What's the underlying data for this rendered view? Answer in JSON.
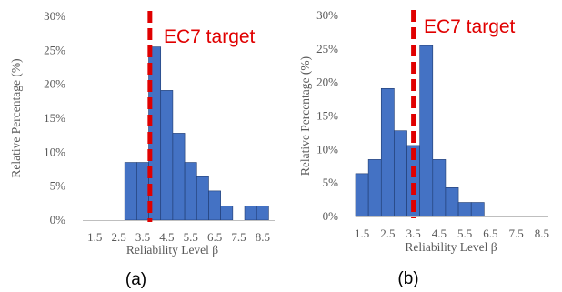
{
  "chart_data": [
    {
      "type": "bar",
      "panel_label": "(a)",
      "xlabel": "Reliability Level β",
      "ylabel": "Relative Percentage (%)",
      "y_ticks": [
        "0%",
        "5%",
        "10%",
        "15%",
        "20%",
        "25%",
        "30%"
      ],
      "ylim": [
        0,
        30
      ],
      "x_ticks": [
        "1.5",
        "2.5",
        "3.5",
        "4.5",
        "5.5",
        "6.5",
        "7.5",
        "8.5"
      ],
      "xlim": [
        1.0,
        9.0
      ],
      "bin_width": 0.5,
      "bins": [
        {
          "x": 3.0,
          "value": 8.5
        },
        {
          "x": 3.5,
          "value": 8.5
        },
        {
          "x": 4.0,
          "value": 25.5
        },
        {
          "x": 4.5,
          "value": 19.1
        },
        {
          "x": 5.0,
          "value": 12.8
        },
        {
          "x": 5.5,
          "value": 8.5
        },
        {
          "x": 6.0,
          "value": 6.4
        },
        {
          "x": 6.5,
          "value": 4.3
        },
        {
          "x": 7.0,
          "value": 2.1
        },
        {
          "x": 8.0,
          "value": 2.1
        },
        {
          "x": 8.5,
          "value": 2.1
        }
      ],
      "target": {
        "label": "EC7 target",
        "x": 3.8
      },
      "bar_color": "#4472c4",
      "bar_edge_color": "#1f3a6e",
      "target_color": "#e00000"
    },
    {
      "type": "bar",
      "panel_label": "(b)",
      "xlabel": "Reliability Level β",
      "ylabel": "Relative Percentage (%)",
      "y_ticks": [
        "0%",
        "5%",
        "10%",
        "15%",
        "20%",
        "25%",
        "30%"
      ],
      "ylim": [
        0,
        30
      ],
      "x_ticks": [
        "1.5",
        "2.0",
        "2.5",
        "3.0",
        "3.5",
        "4.0",
        "4.5",
        "5.0",
        "5.5",
        "6.0",
        "6.5",
        "7.0",
        "7.5",
        "8.0",
        "8.5"
      ],
      "x_tick_labels": [
        "1.5",
        "",
        "2.5",
        "",
        "3.5",
        "",
        "4.5",
        "",
        "5.5",
        "",
        "6.5",
        "",
        "7.5",
        "",
        "8.5"
      ],
      "xlim": [
        1.25,
        8.75
      ],
      "bin_width": 0.5,
      "bins": [
        {
          "x": 1.5,
          "value": 6.4
        },
        {
          "x": 2.0,
          "value": 8.5
        },
        {
          "x": 2.5,
          "value": 19.1
        },
        {
          "x": 3.0,
          "value": 12.8
        },
        {
          "x": 3.5,
          "value": 10.6
        },
        {
          "x": 4.0,
          "value": 25.5
        },
        {
          "x": 4.5,
          "value": 8.5
        },
        {
          "x": 5.0,
          "value": 4.3
        },
        {
          "x": 5.5,
          "value": 2.1
        },
        {
          "x": 6.0,
          "value": 2.1
        }
      ],
      "target": {
        "label": "EC7 target",
        "x": 3.5
      },
      "bar_color": "#4472c4",
      "bar_edge_color": "#1f3a6e",
      "target_color": "#e00000"
    }
  ]
}
